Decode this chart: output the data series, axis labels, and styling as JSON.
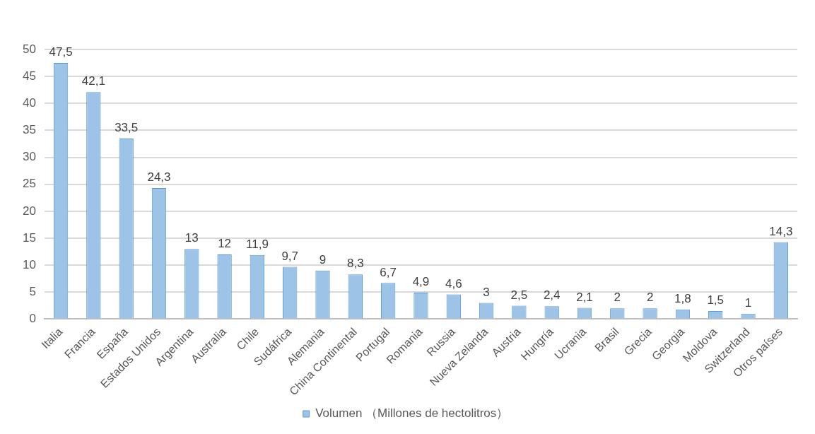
{
  "chart_data": {
    "type": "bar",
    "categories": [
      "Italia",
      "Francia",
      "España",
      "Estados Unidos",
      "Argentina",
      "Australia",
      "Chile",
      "Sudáfrica",
      "Alemania",
      "China Continental",
      "Portugal",
      "Romania",
      "Russia",
      "Nueva Zelanda",
      "Austria",
      "Hungría",
      "Ucrania",
      "Brasil",
      "Grecia",
      "Georgia",
      "Moldova",
      "Switzerland",
      "Otros países"
    ],
    "series": [
      {
        "name": "Volumen （Millones de hectolitros）",
        "color": "#9dc3e6",
        "values": [
          47.5,
          42.1,
          33.5,
          24.3,
          13,
          12,
          11.9,
          9.7,
          9,
          8.3,
          6.7,
          4.9,
          4.6,
          3,
          2.5,
          2.4,
          2.1,
          2,
          2,
          1.8,
          1.5,
          1,
          14.3
        ],
        "value_labels": [
          "47,5",
          "42,1",
          "33,5",
          "24,3",
          "13",
          "12",
          "11,9",
          "9,7",
          "9",
          "8,3",
          "6,7",
          "4,9",
          "4,6",
          "3",
          "2,5",
          "2,4",
          "2,1",
          "2",
          "2",
          "1,8",
          "1,5",
          "1",
          "14,3"
        ]
      }
    ],
    "ylim": [
      0,
      50
    ],
    "yticks": [
      0,
      5,
      10,
      15,
      20,
      25,
      30,
      35,
      40,
      45,
      50
    ],
    "grid": "y",
    "legend": "bottom"
  }
}
